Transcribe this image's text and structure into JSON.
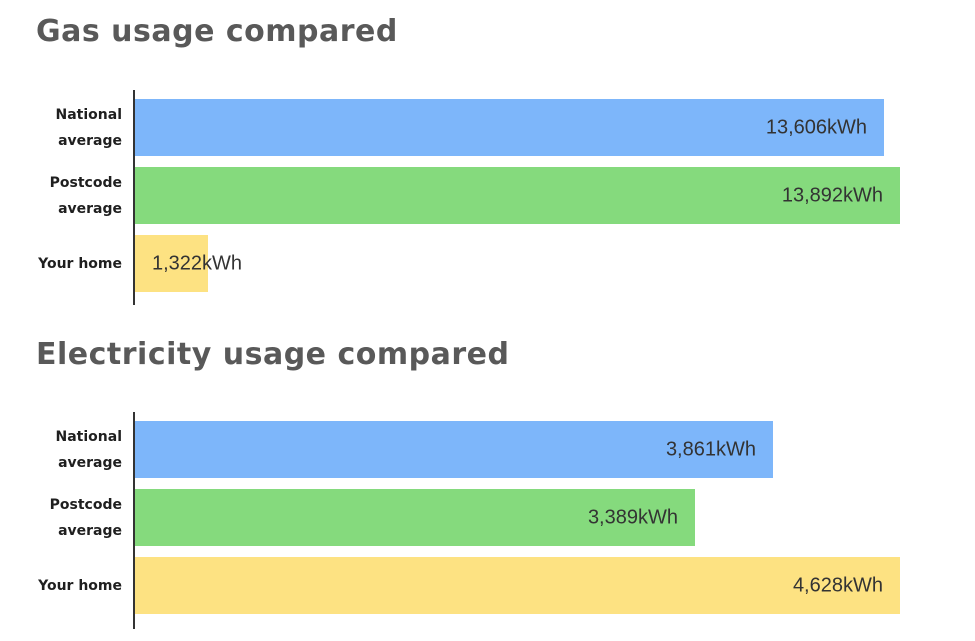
{
  "style": {
    "background": "#ffffff",
    "title_color": "#595959",
    "axis_color": "#333333",
    "category_label_color": "#1f1f1f",
    "value_label_color": "#333333"
  },
  "chart_data": [
    {
      "type": "bar",
      "orientation": "horizontal",
      "title": "Gas usage compared",
      "categories": [
        "National average",
        "Postcode average",
        "Your home"
      ],
      "category_lines": [
        [
          "National",
          "average"
        ],
        [
          "Postcode",
          "average"
        ],
        [
          "Your home"
        ]
      ],
      "values": [
        13606,
        13892,
        1322
      ],
      "value_labels": [
        "13,606kWh",
        "13,892kWh",
        "1,322kWh"
      ],
      "bar_colors": [
        "#7db6fa",
        "#85da7d",
        "#fde282"
      ],
      "unit": "kWh",
      "xlim": [
        0,
        13892
      ],
      "grid": false,
      "legend": false
    },
    {
      "type": "bar",
      "orientation": "horizontal",
      "title": "Electricity usage compared",
      "categories": [
        "National average",
        "Postcode average",
        "Your home"
      ],
      "category_lines": [
        [
          "National",
          "average"
        ],
        [
          "Postcode",
          "average"
        ],
        [
          "Your home"
        ]
      ],
      "values": [
        3861,
        3389,
        4628
      ],
      "value_labels": [
        "3,861kWh",
        "3,389kWh",
        "4,628kWh"
      ],
      "bar_colors": [
        "#7db6fa",
        "#85da7d",
        "#fde282"
      ],
      "unit": "kWh",
      "xlim": [
        0,
        4628
      ],
      "grid": false,
      "legend": false
    }
  ]
}
